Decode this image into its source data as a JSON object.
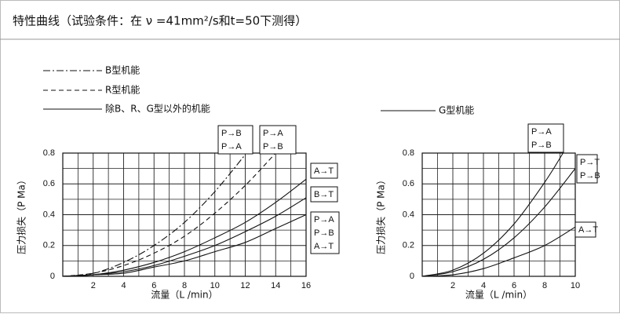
{
  "header": {
    "title": "特性曲线（试验条件：在 ν =41mm²/s和t=50下测得）"
  },
  "legend": [
    {
      "name": "B型机能",
      "style": "dashdot"
    },
    {
      "name": "R型机能",
      "style": "dashed"
    },
    {
      "name": "除B、R、G型以外的机能",
      "style": "solid"
    },
    {
      "name": "G型机能",
      "style": "solid"
    }
  ],
  "chart_data": [
    {
      "type": "line",
      "xlabel": "流量（L /min）",
      "ylabel": "压力损失（P Ma）",
      "xlim": [
        0,
        16
      ],
      "ylim": [
        0,
        0.8
      ],
      "xticks": [
        2,
        4,
        6,
        8,
        10,
        12,
        14,
        16
      ],
      "yticks": [
        0,
        0.2,
        0.4,
        0.6,
        0.8
      ],
      "grid": true,
      "color": "#111111",
      "series": [
        {
          "labels": [
            "P→B",
            "P→A"
          ],
          "style": "dashdot",
          "x": [
            0,
            2,
            4,
            6,
            8,
            10,
            12
          ],
          "values": [
            0,
            0.02,
            0.09,
            0.2,
            0.35,
            0.55,
            0.79
          ]
        },
        {
          "labels": [
            "P→A",
            "P→B"
          ],
          "style": "dashed",
          "x": [
            0,
            2,
            4,
            6,
            8,
            10,
            12,
            14
          ],
          "values": [
            0,
            0.02,
            0.07,
            0.15,
            0.26,
            0.41,
            0.59,
            0.8
          ]
        },
        {
          "labels": [
            "A→T"
          ],
          "style": "solid",
          "x": [
            0,
            2,
            4,
            6,
            8,
            10,
            12,
            14,
            16
          ],
          "values": [
            0,
            0.01,
            0.04,
            0.09,
            0.16,
            0.25,
            0.35,
            0.48,
            0.63
          ]
        },
        {
          "labels": [
            "B→T"
          ],
          "style": "solid",
          "x": [
            0,
            2,
            4,
            6,
            8,
            10,
            12,
            14,
            16
          ],
          "values": [
            0,
            0.01,
            0.03,
            0.07,
            0.13,
            0.2,
            0.29,
            0.39,
            0.51
          ]
        },
        {
          "labels": [
            "P→A",
            "P→B",
            "A→T"
          ],
          "style": "solid",
          "x": [
            0,
            2,
            4,
            6,
            8,
            10,
            12,
            14,
            16
          ],
          "values": [
            0,
            0.01,
            0.02,
            0.06,
            0.1,
            0.16,
            0.22,
            0.31,
            0.4
          ]
        }
      ]
    },
    {
      "type": "line",
      "xlabel": "流量（L /min）",
      "ylabel": "压力损失（P Ma）",
      "xlim": [
        0,
        10
      ],
      "ylim": [
        0,
        0.8
      ],
      "xticks": [
        2,
        4,
        6,
        8,
        10
      ],
      "yticks": [
        0,
        0.2,
        0.4,
        0.6,
        0.8
      ],
      "grid": true,
      "color": "#111111",
      "series": [
        {
          "labels": [
            "P→A",
            "P→B"
          ],
          "style": "solid",
          "x": [
            0,
            2,
            4,
            6,
            8,
            9.2
          ],
          "values": [
            0,
            0.04,
            0.15,
            0.34,
            0.61,
            0.8
          ]
        },
        {
          "labels": [
            "P→T",
            "P→B"
          ],
          "style": "solid",
          "x": [
            0,
            2,
            4,
            6,
            8,
            10
          ],
          "values": [
            0,
            0.03,
            0.11,
            0.25,
            0.45,
            0.7
          ]
        },
        {
          "labels": [
            "A→T"
          ],
          "style": "solid",
          "x": [
            0,
            2,
            4,
            6,
            8,
            10
          ],
          "values": [
            0,
            0.01,
            0.05,
            0.12,
            0.2,
            0.32
          ]
        }
      ]
    }
  ]
}
